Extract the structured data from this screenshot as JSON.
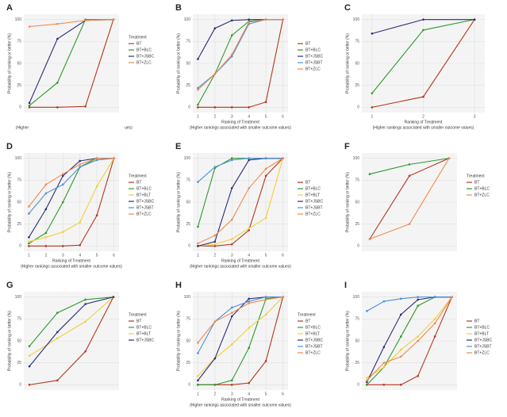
{
  "chart_data": [
    {
      "type": "line",
      "label": "A",
      "x": [
        1,
        2,
        3,
        4
      ],
      "xlim": [
        0.8,
        4.2
      ],
      "ylim": [
        -6,
        106
      ],
      "yticks": [
        0,
        25,
        50,
        75,
        100
      ],
      "ylabel": "Probability of ranking or better (%)",
      "annotations": [
        "(Higher",
        "ues)"
      ],
      "legend_title": "Treatment",
      "series": [
        {
          "name": "BT",
          "color": "#b5361f",
          "values": [
            0,
            0,
            1,
            100
          ]
        },
        {
          "name": "BT+BLC",
          "color": "#2e9a2e",
          "values": [
            2,
            28,
            100,
            100
          ]
        },
        {
          "name": "BT+JSBC",
          "color": "#2b2b78",
          "values": [
            5,
            78,
            99,
            100
          ]
        },
        {
          "name": "BT+ZLC",
          "color": "#f08a4b",
          "values": [
            92,
            95,
            99,
            100
          ]
        }
      ]
    },
    {
      "type": "line",
      "label": "B",
      "x": [
        1,
        2,
        3,
        4,
        5,
        6
      ],
      "xlim": [
        0.7,
        6.3
      ],
      "ylim": [
        -6,
        106
      ],
      "yticks": [
        0,
        25,
        50,
        75,
        100
      ],
      "xticks": [
        1,
        2,
        3,
        4,
        5,
        6
      ],
      "ylabel": "Probability of ranking or better (%)",
      "xlabel": "Ranking of Treatment",
      "xlabel2": "(Higher rankings associated with smaller outcome values)",
      "series": [
        {
          "name": "BT",
          "color": "#b5361f",
          "values": [
            0,
            0,
            0,
            0,
            6,
            100
          ]
        },
        {
          "name": "BT+BLC",
          "color": "#2e9a2e",
          "values": [
            3,
            38,
            82,
            98,
            100,
            100
          ]
        },
        {
          "name": "BT+JSBC",
          "color": "#2b2b78",
          "values": [
            55,
            90,
            99,
            100,
            100,
            100
          ]
        },
        {
          "name": "BT+JSBT",
          "color": "#4a90d9",
          "values": [
            22,
            38,
            58,
            95,
            100,
            100
          ]
        },
        {
          "name": "BT+ZLC",
          "color": "#f08a4b",
          "values": [
            20,
            38,
            60,
            97,
            100,
            100
          ]
        }
      ]
    },
    {
      "type": "line",
      "label": "C",
      "x": [
        1,
        2,
        3
      ],
      "xlim": [
        0.8,
        3.2
      ],
      "ylim": [
        -6,
        106
      ],
      "yticks": [
        0,
        25,
        50,
        75,
        100
      ],
      "xticks": [
        1,
        2,
        3
      ],
      "ylabel": "Probability of ranking or better (%)",
      "xlabel": "Ranking of Treatment",
      "xlabel2": "(Higher rankings associated with smaller outcome values)",
      "series": [
        {
          "color": "#b5361f",
          "values": [
            0,
            12,
            100
          ]
        },
        {
          "color": "#2e9a2e",
          "values": [
            16,
            88,
            100
          ]
        },
        {
          "color": "#2b2b78",
          "values": [
            84,
            100,
            100
          ]
        }
      ]
    },
    {
      "type": "line",
      "label": "D",
      "x": [
        1,
        2,
        3,
        4,
        5,
        6
      ],
      "xlim": [
        0.7,
        6.3
      ],
      "ylim": [
        -6,
        106
      ],
      "yticks": [
        0,
        25,
        50,
        75,
        100
      ],
      "xticks": [
        1,
        2,
        3,
        4,
        5,
        6
      ],
      "ylabel": "Probability of ranking or better (%)",
      "xlabel": "Ranking of Treatment",
      "xlabel2": "(Higher rankings associated with smaller outcome values)",
      "legend_title": "Treatment",
      "series": [
        {
          "name": "BT",
          "color": "#b5361f",
          "values": [
            0,
            0,
            0,
            1,
            35,
            100
          ]
        },
        {
          "name": "BT+BLC",
          "color": "#2e9a2e",
          "values": [
            3,
            15,
            50,
            90,
            100,
            100
          ]
        },
        {
          "name": "BT+BLT",
          "color": "#f2cf3a",
          "values": [
            5,
            10,
            16,
            27,
            68,
            100
          ]
        },
        {
          "name": "BT+JSBC",
          "color": "#2b2b78",
          "values": [
            10,
            42,
            80,
            97,
            100,
            100
          ]
        },
        {
          "name": "BT+JSBT",
          "color": "#4a90d9",
          "values": [
            37,
            60,
            70,
            90,
            98,
            100
          ]
        },
        {
          "name": "BT+ZLC",
          "color": "#f08a4b",
          "values": [
            45,
            70,
            82,
            93,
            100,
            100
          ]
        }
      ]
    },
    {
      "type": "line",
      "label": "E",
      "x": [
        1,
        2,
        3,
        4,
        5,
        6
      ],
      "xlim": [
        0.7,
        6.3
      ],
      "ylim": [
        -6,
        106
      ],
      "yticks": [
        0,
        25,
        50,
        75,
        100
      ],
      "xticks": [
        1,
        2,
        3,
        4,
        5,
        6
      ],
      "ylabel": "Probability of ranking or better (%)",
      "xlabel": "Ranking of Treatment",
      "xlabel2": "(Higher rankings associated with smaller outcome values)",
      "series": [
        {
          "name": "BT",
          "color": "#b5361f",
          "values": [
            0,
            0,
            2,
            18,
            80,
            100
          ]
        },
        {
          "name": "BT+BLC",
          "color": "#2e9a2e",
          "values": [
            22,
            89,
            100,
            100,
            100,
            100
          ]
        },
        {
          "name": "BT+BLT",
          "color": "#f2cf3a",
          "values": [
            0,
            2,
            8,
            20,
            32,
            100
          ]
        },
        {
          "name": "BT+JSBC",
          "color": "#2b2b78",
          "values": [
            0,
            5,
            66,
            98,
            100,
            100
          ]
        },
        {
          "name": "BT+JSBT",
          "color": "#4a90d9",
          "values": [
            73,
            90,
            98,
            100,
            100,
            100
          ]
        },
        {
          "name": "BT+ZLC",
          "color": "#f08a4b",
          "values": [
            3,
            12,
            30,
            66,
            88,
            100
          ]
        }
      ]
    },
    {
      "type": "line",
      "label": "F",
      "x": [
        1,
        2,
        3
      ],
      "xlim": [
        0.8,
        3.2
      ],
      "ylim": [
        -6,
        106
      ],
      "yticks": [
        0,
        25,
        50,
        75,
        100
      ],
      "ylabel": "Probability of ranking or better (%)",
      "legend_title": "Treatment",
      "series": [
        {
          "name": "BT",
          "color": "#b5361f",
          "values": [
            8,
            80,
            100
          ]
        },
        {
          "name": "BT+BLC",
          "color": "#2e9a2e",
          "values": [
            82,
            93,
            100
          ]
        },
        {
          "name": "BT+ZLC",
          "color": "#f08a4b",
          "values": [
            8,
            25,
            100
          ]
        }
      ]
    },
    {
      "type": "line",
      "label": "G",
      "x": [
        1,
        2,
        3,
        4
      ],
      "xlim": [
        0.8,
        4.2
      ],
      "ylim": [
        -6,
        106
      ],
      "yticks": [
        0,
        25,
        50,
        75,
        100
      ],
      "ylabel": "Probability of ranking or better (%)",
      "legend_title": "Treatment",
      "series": [
        {
          "name": "BT",
          "color": "#b5361f",
          "values": [
            0,
            5,
            38,
            100
          ]
        },
        {
          "name": "BT+BLC",
          "color": "#2e9a2e",
          "values": [
            44,
            82,
            97,
            100
          ]
        },
        {
          "name": "BT+BLT",
          "color": "#f2cf3a",
          "values": [
            33,
            53,
            72,
            100
          ]
        },
        {
          "name": "BT+JSBC",
          "color": "#2b2b78",
          "values": [
            21,
            60,
            92,
            100
          ]
        }
      ]
    },
    {
      "type": "line",
      "label": "H",
      "x": [
        1,
        2,
        3,
        4,
        5,
        6
      ],
      "xlim": [
        0.7,
        6.3
      ],
      "ylim": [
        -6,
        106
      ],
      "yticks": [
        0,
        25,
        50,
        75,
        100
      ],
      "xticks": [
        1,
        2,
        3,
        4,
        5,
        6
      ],
      "ylabel": "Probability of ranking or better (%)",
      "xlabel": "Ranking of Treatment",
      "xlabel2": "(Higher rankings associated with smaller outcome values)",
      "legend_title": "Treatment",
      "series": [
        {
          "name": "BT",
          "color": "#b5361f",
          "values": [
            0,
            0,
            0,
            2,
            27,
            100
          ]
        },
        {
          "name": "BT+BLC",
          "color": "#2e9a2e",
          "values": [
            0,
            0,
            5,
            42,
            98,
            100
          ]
        },
        {
          "name": "BT+BLT",
          "color": "#f2cf3a",
          "values": [
            10,
            30,
            46,
            65,
            80,
            100
          ]
        },
        {
          "name": "BT+JSBC",
          "color": "#2b2b78",
          "values": [
            5,
            30,
            78,
            98,
            100,
            100
          ]
        },
        {
          "name": "BT+JSBT",
          "color": "#4a90d9",
          "values": [
            36,
            72,
            88,
            95,
            100,
            100
          ]
        },
        {
          "name": "BT+ZLC",
          "color": "#f08a4b",
          "values": [
            48,
            72,
            82,
            93,
            97,
            100
          ]
        }
      ]
    },
    {
      "type": "line",
      "label": "I",
      "x": [
        1,
        2,
        3,
        4,
        5,
        6
      ],
      "xlim": [
        0.7,
        6.3
      ],
      "ylim": [
        -6,
        106
      ],
      "yticks": [
        0,
        25,
        50,
        75,
        100
      ],
      "ylabel": "Probability of ranking or better (%)",
      "series": [
        {
          "name": "BT",
          "color": "#b5361f",
          "values": [
            0,
            0,
            0,
            10,
            55,
            100
          ]
        },
        {
          "name": "BT+BLC",
          "color": "#2e9a2e",
          "values": [
            0,
            20,
            55,
            90,
            100,
            100
          ]
        },
        {
          "name": "BT+BLT",
          "color": "#f2cf3a",
          "values": [
            8,
            20,
            40,
            55,
            75,
            100
          ]
        },
        {
          "name": "BT+JSBC",
          "color": "#2b2b78",
          "values": [
            3,
            43,
            80,
            97,
            100,
            100
          ]
        },
        {
          "name": "BT+JSBT",
          "color": "#4a90d9",
          "values": [
            84,
            95,
            98,
            100,
            100,
            100
          ]
        },
        {
          "name": "BT+ZLC",
          "color": "#f08a4b",
          "values": [
            5,
            25,
            32,
            50,
            70,
            100
          ]
        }
      ]
    }
  ]
}
